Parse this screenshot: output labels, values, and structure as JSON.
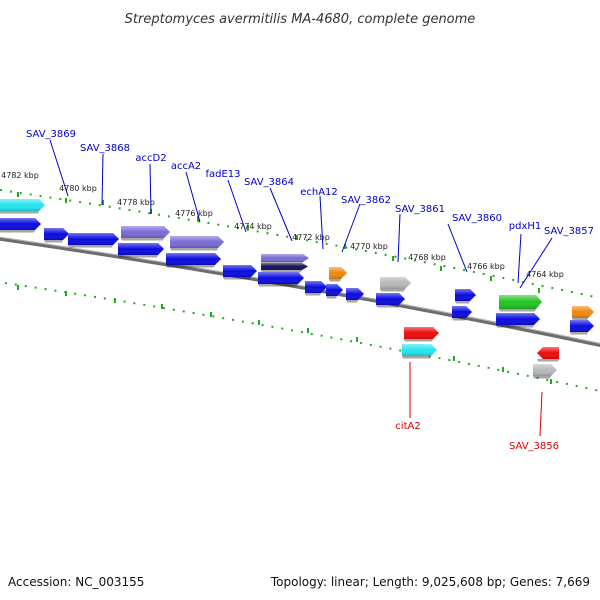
{
  "title": "Streptomyces avermitilis MA-4680, complete genome",
  "footer": {
    "accession": "Accession: NC_003155",
    "summary": "Topology: linear; Length: 9,025,608 bp; Genes: 7,669"
  },
  "colors": {
    "label_top": "#0000cc",
    "label_bottom": "#dd0000",
    "blue": "#0a0ae0",
    "lavender": "#7a6ad6",
    "navy": "#12125a",
    "cyan": "#25e6ee",
    "orange": "#ee8810",
    "gray": "#b8b8b8",
    "green": "#22c422",
    "red": "#ee0a0a",
    "tick": "#22aa22",
    "backbone": "#7a7a7a"
  },
  "kbp_labels": [
    "4782 kbp",
    "4780 kbp",
    "4778 kbp",
    "4776 kbp",
    "4774 kbp",
    "4772 kbp",
    "4770 kbp",
    "4768 kbp",
    "4766 kbp",
    "4764 kbp"
  ],
  "top_labels": [
    "SAV_3869",
    "SAV_3868",
    "accD2",
    "accA2",
    "fadE13",
    "SAV_3864",
    "echA12",
    "SAV_3862",
    "SAV_3861",
    "SAV_3860",
    "pdxH1",
    "SAV_3857"
  ],
  "bottom_labels": [
    "citA2",
    "SAV_3856"
  ]
}
